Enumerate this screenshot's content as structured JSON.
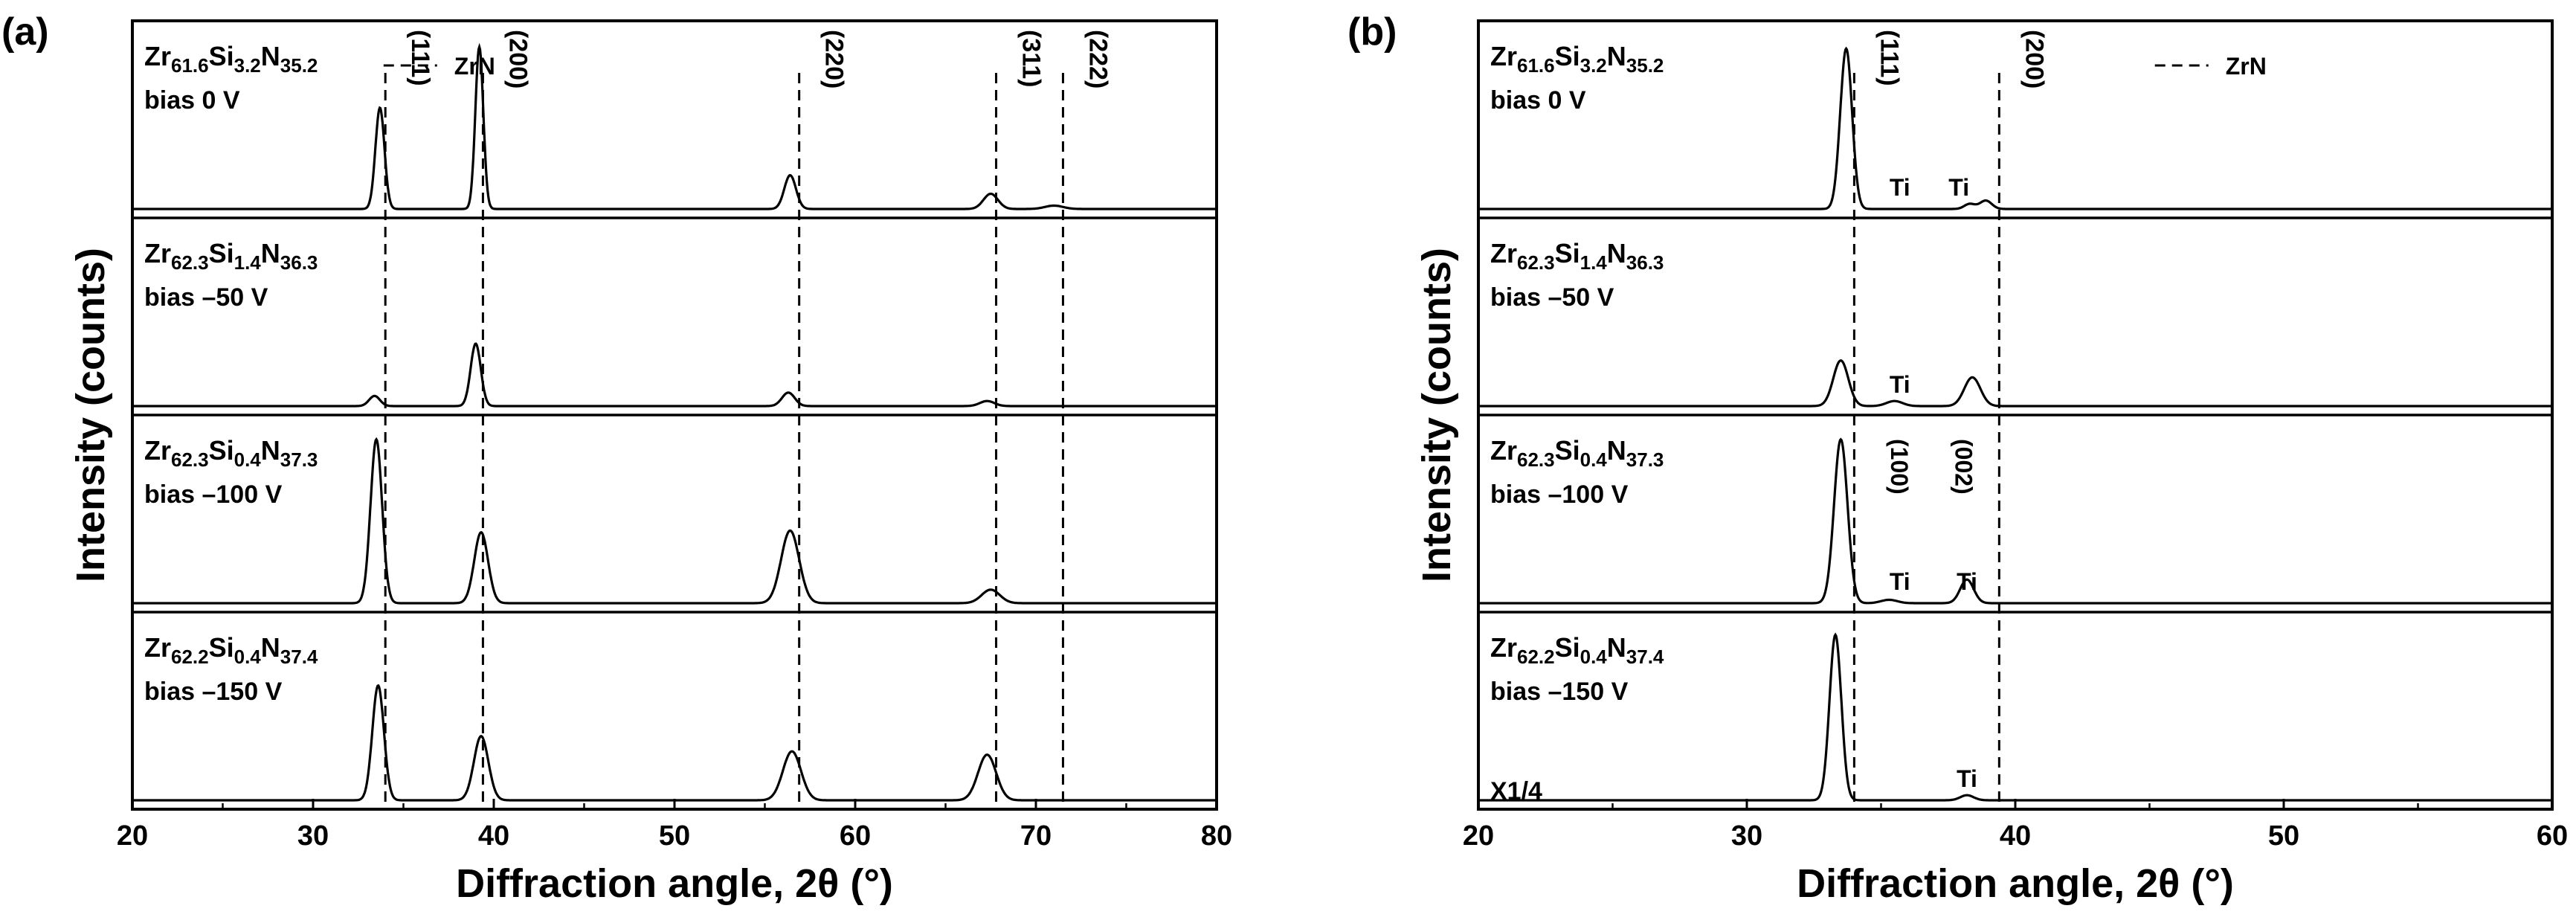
{
  "chart_data": [
    {
      "panel": "(a)",
      "type": "line",
      "xlabel": "Diffraction angle, 2θ (°)",
      "ylabel": "Intensity (counts)",
      "xlim": [
        20,
        80
      ],
      "xticks": [
        20,
        30,
        40,
        50,
        60,
        70,
        80
      ],
      "reference": {
        "legend": "ZrN",
        "lines": [
          34.0,
          39.4,
          56.9,
          67.8,
          71.5
        ],
        "labels": [
          "(111)",
          "(200)",
          "(220)",
          "(311)",
          "(222)"
        ]
      },
      "series": [
        {
          "name": "Zr61.6Si3.2N35.2 bias 0 V",
          "label": {
            "zr": "Zr",
            "zr_sub": "61.6",
            "si": "Si",
            "si_sub": "3.2",
            "n": "N",
            "n_sub": "35.2",
            "bias": "bias 0 V"
          },
          "peaks": [
            [
              33.7,
              0.6,
              0.25
            ],
            [
              39.2,
              0.96,
              0.22
            ],
            [
              56.4,
              0.2,
              0.32
            ],
            [
              67.5,
              0.09,
              0.4
            ],
            [
              71.0,
              0.02,
              0.5
            ]
          ]
        },
        {
          "name": "Zr62.3Si1.4N36.3 bias -50 V",
          "label": {
            "zr": "Zr",
            "zr_sub": "62.3",
            "si": "Si",
            "si_sub": "1.4",
            "n": "N",
            "n_sub": "36.3",
            "bias": "bias –50 V"
          },
          "peaks": [
            [
              33.4,
              0.06,
              0.3
            ],
            [
              39.0,
              0.37,
              0.28
            ],
            [
              56.3,
              0.08,
              0.35
            ],
            [
              67.3,
              0.03,
              0.4
            ]
          ]
        },
        {
          "name": "Zr62.3Si0.4N37.3 bias -100 V",
          "label": {
            "zr": "Zr",
            "zr_sub": "62.3",
            "si": "Si",
            "si_sub": "0.4",
            "n": "N",
            "n_sub": "37.3",
            "bias": "bias –100 V"
          },
          "peaks": [
            [
              33.5,
              0.97,
              0.32
            ],
            [
              39.3,
              0.42,
              0.38
            ],
            [
              56.4,
              0.43,
              0.5
            ],
            [
              67.5,
              0.08,
              0.5
            ]
          ]
        },
        {
          "name": "Zr62.2Si0.4N37.4 bias -150 V",
          "label": {
            "zr": "Zr",
            "zr_sub": "62.2",
            "si": "Si",
            "si_sub": "0.4",
            "n": "N",
            "n_sub": "37.4",
            "bias": "bias –150 V"
          },
          "peaks": [
            [
              33.6,
              0.68,
              0.32
            ],
            [
              39.3,
              0.38,
              0.4
            ],
            [
              56.5,
              0.29,
              0.5
            ],
            [
              67.3,
              0.27,
              0.5
            ]
          ]
        }
      ]
    },
    {
      "panel": "(b)",
      "type": "line",
      "xlabel": "Diffraction angle, 2θ (°)",
      "ylabel": "Intensity (counts)",
      "xlim": [
        20,
        60
      ],
      "xticks": [
        20,
        30,
        40,
        50,
        60
      ],
      "reference": {
        "legend": "ZrN",
        "lines": [
          34.0,
          39.4
        ],
        "labels": [
          "(111)",
          "(200)"
        ]
      },
      "series": [
        {
          "name": "Zr61.6Si3.2N35.2 bias 0 V",
          "label": {
            "zr": "Zr",
            "zr_sub": "61.6",
            "si": "Si",
            "si_sub": "3.2",
            "n": "N",
            "n_sub": "35.2",
            "bias": "bias 0 V"
          },
          "peaks": [
            [
              33.7,
              0.95,
              0.22
            ],
            [
              38.3,
              0.03,
              0.2
            ],
            [
              38.9,
              0.05,
              0.22
            ]
          ],
          "annotations": [
            {
              "text": "Ti",
              "x": 35.7
            },
            {
              "text": "Ti",
              "x": 37.9
            }
          ]
        },
        {
          "name": "Zr62.3Si1.4N36.3 bias -50 V",
          "label": {
            "zr": "Zr",
            "zr_sub": "62.3",
            "si": "Si",
            "si_sub": "1.4",
            "n": "N",
            "n_sub": "36.3",
            "bias": "bias –50 V"
          },
          "peaks": [
            [
              33.5,
              0.27,
              0.28
            ],
            [
              35.5,
              0.03,
              0.3
            ],
            [
              38.4,
              0.17,
              0.3
            ]
          ],
          "annotations": [
            {
              "text": "Ti",
              "x": 35.7
            }
          ]
        },
        {
          "name": "Zr62.3Si0.4N37.3 bias -100 V",
          "label": {
            "zr": "Zr",
            "zr_sub": "62.3",
            "si": "Si",
            "si_sub": "0.4",
            "n": "N",
            "n_sub": "37.3",
            "bias": "bias –100 V"
          },
          "peaks": [
            [
              33.5,
              0.97,
              0.25
            ],
            [
              35.3,
              0.02,
              0.3
            ],
            [
              38.2,
              0.14,
              0.25
            ]
          ],
          "annotations": [
            {
              "text": "Ti",
              "x": 35.7
            },
            {
              "text": "Ti",
              "x": 38.2
            },
            {
              "text": "(100)",
              "x": 35.7,
              "vertical": true
            },
            {
              "text": "(002)",
              "x": 38.1,
              "vertical": true
            }
          ]
        },
        {
          "name": "Zr62.2Si0.4N37.4 bias -150 V",
          "label": {
            "zr": "Zr",
            "zr_sub": "62.2",
            "si": "Si",
            "si_sub": "0.4",
            "n": "N",
            "n_sub": "37.4",
            "bias": "bias –150 V"
          },
          "scale_note": "X1/4",
          "peaks": [
            [
              33.3,
              0.98,
              0.22
            ],
            [
              38.2,
              0.03,
              0.25
            ]
          ],
          "annotations": [
            {
              "text": "Ti",
              "x": 38.2
            }
          ]
        }
      ]
    }
  ]
}
